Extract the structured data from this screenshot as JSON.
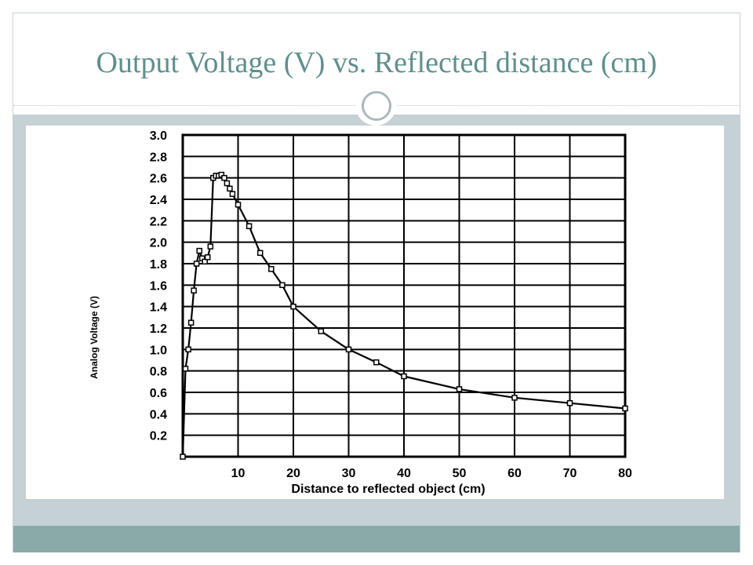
{
  "slide": {
    "title": "Output Voltage (V) vs. Reflected distance (cm)"
  },
  "colors": {
    "title": "#5f8f8f",
    "content_band": "#c5d1d5",
    "footer_band": "#8aaaa9",
    "ring": "#a8b9bd",
    "plot_ink": "#000000"
  },
  "chart_data": {
    "type": "line",
    "xlabel": "Distance to reflected object (cm)",
    "ylabel": "Analog Voltage (V)",
    "xlim": [
      0,
      80
    ],
    "ylim": [
      0,
      3.0
    ],
    "x_ticks": [
      10,
      20,
      30,
      40,
      50,
      60,
      70,
      80
    ],
    "y_ticks": [
      "0.2",
      "0.4",
      "0.6",
      "0.8",
      "1.0",
      "1.2",
      "1.4",
      "1.6",
      "1.8",
      "2.0",
      "2.2",
      "2.4",
      "2.6",
      "2.8",
      "3.0"
    ],
    "grid": true,
    "series": [
      {
        "x": [
          0,
          0.5,
          1,
          1.5,
          2,
          2.5,
          3,
          3.5,
          4,
          4.5,
          5,
          5.5,
          6,
          6.5,
          7,
          7.5,
          8,
          8.5,
          9,
          10,
          12,
          14,
          16,
          18,
          20,
          25,
          30,
          35,
          40,
          50,
          60,
          70,
          80
        ],
        "y": [
          0,
          0.82,
          1.0,
          1.25,
          1.55,
          1.8,
          1.92,
          1.85,
          1.82,
          1.86,
          1.96,
          2.6,
          2.62,
          2.62,
          2.63,
          2.6,
          2.55,
          2.5,
          2.45,
          2.35,
          2.15,
          1.9,
          1.75,
          1.6,
          1.4,
          1.17,
          1.0,
          0.88,
          0.75,
          0.63,
          0.55,
          0.5,
          0.45
        ]
      }
    ]
  }
}
